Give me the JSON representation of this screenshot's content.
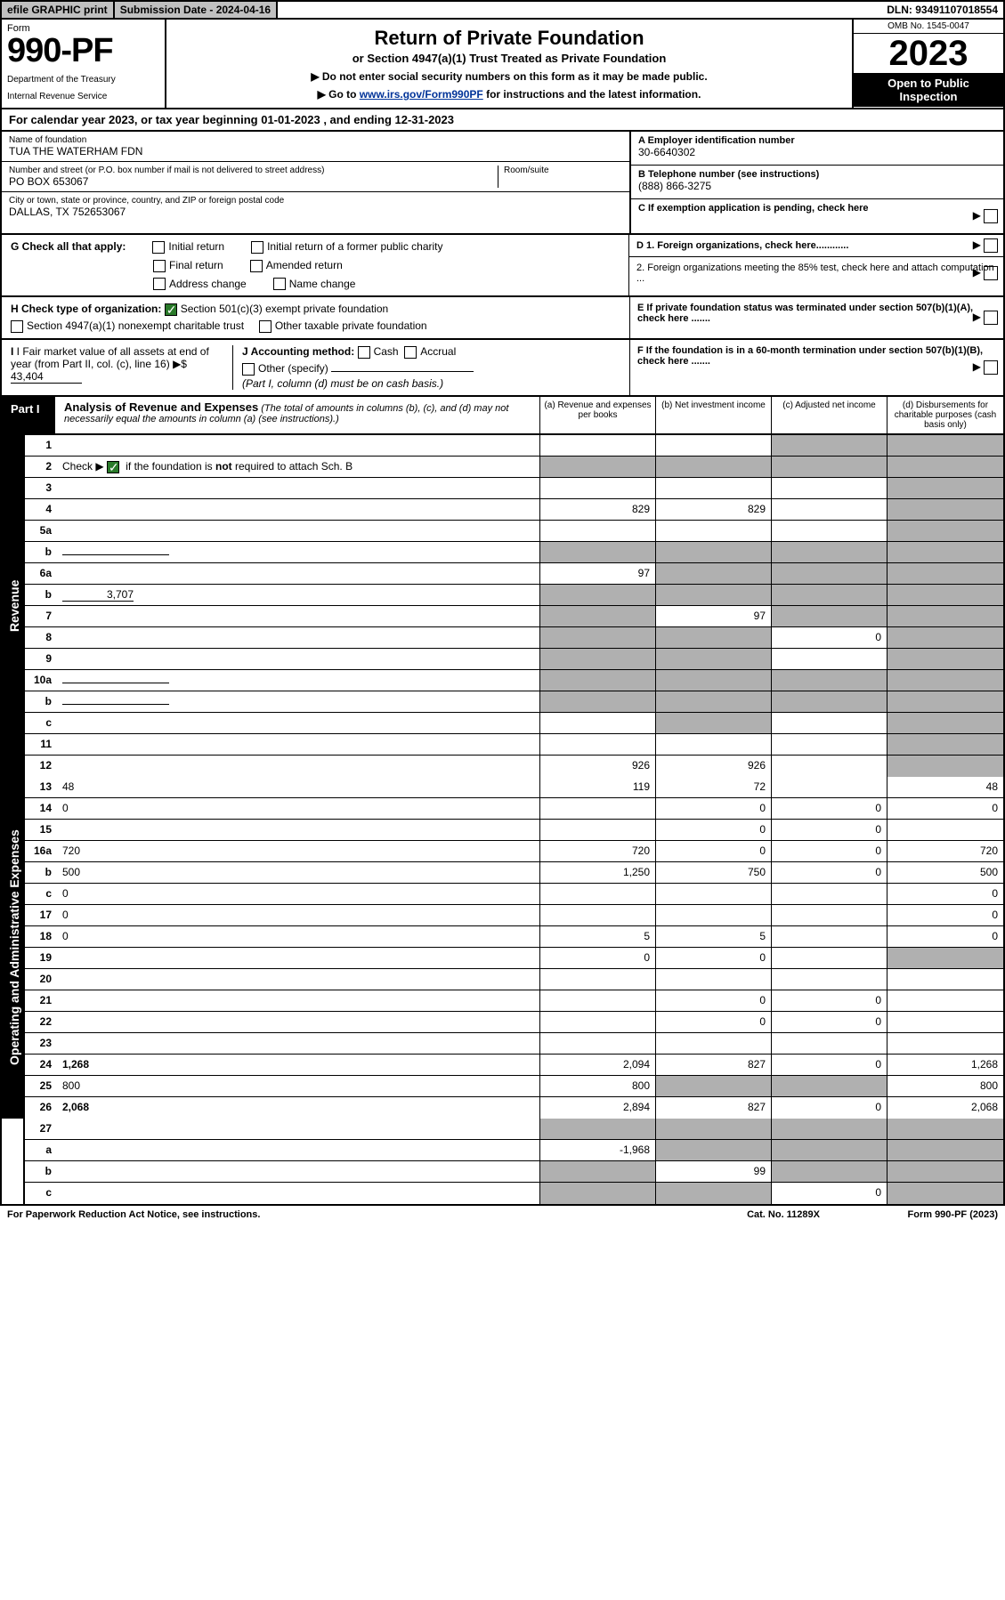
{
  "topbar": {
    "efile": "efile GRAPHIC print",
    "sub_date_label": "Submission Date - 2024-04-16",
    "dln": "DLN: 93491107018554"
  },
  "header": {
    "form_label": "Form",
    "form_no": "990-PF",
    "dept1": "Department of the Treasury",
    "dept2": "Internal Revenue Service",
    "title": "Return of Private Foundation",
    "sub1": "or Section 4947(a)(1) Trust Treated as Private Foundation",
    "sub2a": "▶ Do not enter social security numbers on this form as it may be made public.",
    "sub2b_pre": "▶ Go to ",
    "sub2b_link": "www.irs.gov/Form990PF",
    "sub2b_post": " for instructions and the latest information.",
    "omb": "OMB No. 1545-0047",
    "year": "2023",
    "open_pub1": "Open to Public",
    "open_pub2": "Inspection"
  },
  "calyear": "For calendar year 2023, or tax year beginning 01-01-2023           , and ending 12-31-2023",
  "meta": {
    "name_label": "Name of foundation",
    "name": "TUA THE WATERHAM FDN",
    "addr_label": "Number and street (or P.O. box number if mail is not delivered to street address)",
    "addr": "PO BOX 653067",
    "room_label": "Room/suite",
    "city_label": "City or town, state or province, country, and ZIP or foreign postal code",
    "city": "DALLAS, TX  752653067",
    "a_label": "A Employer identification number",
    "a_val": "30-6640302",
    "b_label": "B Telephone number (see instructions)",
    "b_val": "(888) 866-3275",
    "c_label": "C If exemption application is pending, check here",
    "d1_label": "D 1. Foreign organizations, check here............",
    "d2_label": "2. Foreign organizations meeting the 85% test, check here and attach computation ...",
    "e_label": "E  If private foundation status was terminated under section 507(b)(1)(A), check here .......",
    "f_label": "F  If the foundation is in a 60-month termination under section 507(b)(1)(B), check here ......."
  },
  "g": {
    "label": "G Check all that apply:",
    "opts": [
      "Initial return",
      "Final return",
      "Address change",
      "Initial return of a former public charity",
      "Amended return",
      "Name change"
    ]
  },
  "h": {
    "label": "H Check type of organization:",
    "opt1": "Section 501(c)(3) exempt private foundation",
    "opt2": "Section 4947(a)(1) nonexempt charitable trust",
    "opt3": "Other taxable private foundation"
  },
  "i": {
    "label": "I Fair market value of all assets at end of year (from Part II, col. (c), line 16)",
    "arrow": "▶$",
    "val": "43,404"
  },
  "j": {
    "label": "J Accounting method:",
    "cash": "Cash",
    "accrual": "Accrual",
    "other": "Other (specify)",
    "note": "(Part I, column (d) must be on cash basis.)"
  },
  "part1": {
    "label": "Part I",
    "title": "Analysis of Revenue and Expenses",
    "title_note": "(The total of amounts in columns (b), (c), and (d) may not necessarily equal the amounts in column (a) (see instructions).)",
    "col_a": "(a)   Revenue and expenses per books",
    "col_b": "(b)   Net investment income",
    "col_c": "(c)   Adjusted net income",
    "col_d": "(d)   Disbursements for charitable purposes (cash basis only)"
  },
  "side_rev": "Revenue",
  "side_exp": "Operating and Administrative Expenses",
  "rows_rev": [
    {
      "n": "1",
      "d": "",
      "a": "",
      "b": "",
      "c": "",
      "shade": [
        "c",
        "d"
      ]
    },
    {
      "n": "2",
      "d": "",
      "a": "",
      "b": "",
      "c": "",
      "shade": [
        "a",
        "b",
        "c",
        "d"
      ],
      "checked": true
    },
    {
      "n": "3",
      "d": "",
      "a": "",
      "b": "",
      "c": "",
      "shade": [
        "d"
      ]
    },
    {
      "n": "4",
      "d": "",
      "a": "829",
      "b": "829",
      "c": "",
      "shade": [
        "d"
      ]
    },
    {
      "n": "5a",
      "d": "",
      "a": "",
      "b": "",
      "c": "",
      "shade": [
        "d"
      ]
    },
    {
      "n": "b",
      "d": "",
      "a": "",
      "b": "",
      "c": "",
      "shade": [
        "a",
        "b",
        "c",
        "d"
      ],
      "inline": true
    },
    {
      "n": "6a",
      "d": "",
      "a": "97",
      "b": "",
      "c": "",
      "shade": [
        "b",
        "c",
        "d"
      ]
    },
    {
      "n": "b",
      "d": "",
      "a": "",
      "b": "",
      "c": "",
      "shade": [
        "a",
        "b",
        "c",
        "d"
      ],
      "inline_val": "3,707"
    },
    {
      "n": "7",
      "d": "",
      "a": "",
      "b": "97",
      "c": "",
      "shade": [
        "a",
        "c",
        "d"
      ]
    },
    {
      "n": "8",
      "d": "",
      "a": "",
      "b": "",
      "c": "0",
      "shade": [
        "a",
        "b",
        "d"
      ]
    },
    {
      "n": "9",
      "d": "",
      "a": "",
      "b": "",
      "c": "",
      "shade": [
        "a",
        "b",
        "d"
      ]
    },
    {
      "n": "10a",
      "d": "",
      "a": "",
      "b": "",
      "c": "",
      "shade": [
        "a",
        "b",
        "c",
        "d"
      ],
      "inline": true
    },
    {
      "n": "b",
      "d": "",
      "a": "",
      "b": "",
      "c": "",
      "shade": [
        "a",
        "b",
        "c",
        "d"
      ],
      "inline": true
    },
    {
      "n": "c",
      "d": "",
      "a": "",
      "b": "",
      "c": "",
      "shade": [
        "b",
        "d"
      ]
    },
    {
      "n": "11",
      "d": "",
      "a": "",
      "b": "",
      "c": "",
      "shade": [
        "d"
      ]
    },
    {
      "n": "12",
      "d": "",
      "a": "926",
      "b": "926",
      "c": "",
      "shade": [
        "d"
      ],
      "bold": true
    }
  ],
  "rows_exp": [
    {
      "n": "13",
      "d": "48",
      "a": "119",
      "b": "72",
      "c": ""
    },
    {
      "n": "14",
      "d": "0",
      "a": "",
      "b": "0",
      "c": "0"
    },
    {
      "n": "15",
      "d": "",
      "a": "",
      "b": "0",
      "c": "0"
    },
    {
      "n": "16a",
      "d": "720",
      "a": "720",
      "b": "0",
      "c": "0"
    },
    {
      "n": "b",
      "d": "500",
      "a": "1,250",
      "b": "750",
      "c": "0"
    },
    {
      "n": "c",
      "d": "0",
      "a": "",
      "b": "",
      "c": ""
    },
    {
      "n": "17",
      "d": "0",
      "a": "",
      "b": "",
      "c": ""
    },
    {
      "n": "18",
      "d": "0",
      "a": "5",
      "b": "5",
      "c": ""
    },
    {
      "n": "19",
      "d": "",
      "a": "0",
      "b": "0",
      "c": "",
      "shade": [
        "d"
      ]
    },
    {
      "n": "20",
      "d": "",
      "a": "",
      "b": "",
      "c": ""
    },
    {
      "n": "21",
      "d": "",
      "a": "",
      "b": "0",
      "c": "0"
    },
    {
      "n": "22",
      "d": "",
      "a": "",
      "b": "0",
      "c": "0"
    },
    {
      "n": "23",
      "d": "",
      "a": "",
      "b": "",
      "c": ""
    },
    {
      "n": "24",
      "d": "1,268",
      "a": "2,094",
      "b": "827",
      "c": "0",
      "bold": true
    },
    {
      "n": "25",
      "d": "800",
      "a": "800",
      "b": "",
      "c": "",
      "shade": [
        "b",
        "c"
      ]
    },
    {
      "n": "26",
      "d": "2,068",
      "a": "2,894",
      "b": "827",
      "c": "0",
      "bold": true
    }
  ],
  "rows_bottom": [
    {
      "n": "27",
      "d": "",
      "a": "",
      "b": "",
      "c": "",
      "shade": [
        "a",
        "b",
        "c",
        "d"
      ]
    },
    {
      "n": "a",
      "d": "",
      "a": "-1,968",
      "b": "",
      "c": "",
      "shade": [
        "b",
        "c",
        "d"
      ],
      "bold": true
    },
    {
      "n": "b",
      "d": "",
      "a": "",
      "b": "99",
      "c": "",
      "shade": [
        "a",
        "c",
        "d"
      ],
      "bold": true
    },
    {
      "n": "c",
      "d": "",
      "a": "",
      "b": "",
      "c": "0",
      "shade": [
        "a",
        "b",
        "d"
      ],
      "bold": true
    }
  ],
  "footer": {
    "left": "For Paperwork Reduction Act Notice, see instructions.",
    "mid": "Cat. No. 11289X",
    "right": "Form 990-PF (2023)"
  },
  "colors": {
    "shade": "#b0b0b0",
    "link": "#003399",
    "check_green": "#2a7a2a"
  }
}
